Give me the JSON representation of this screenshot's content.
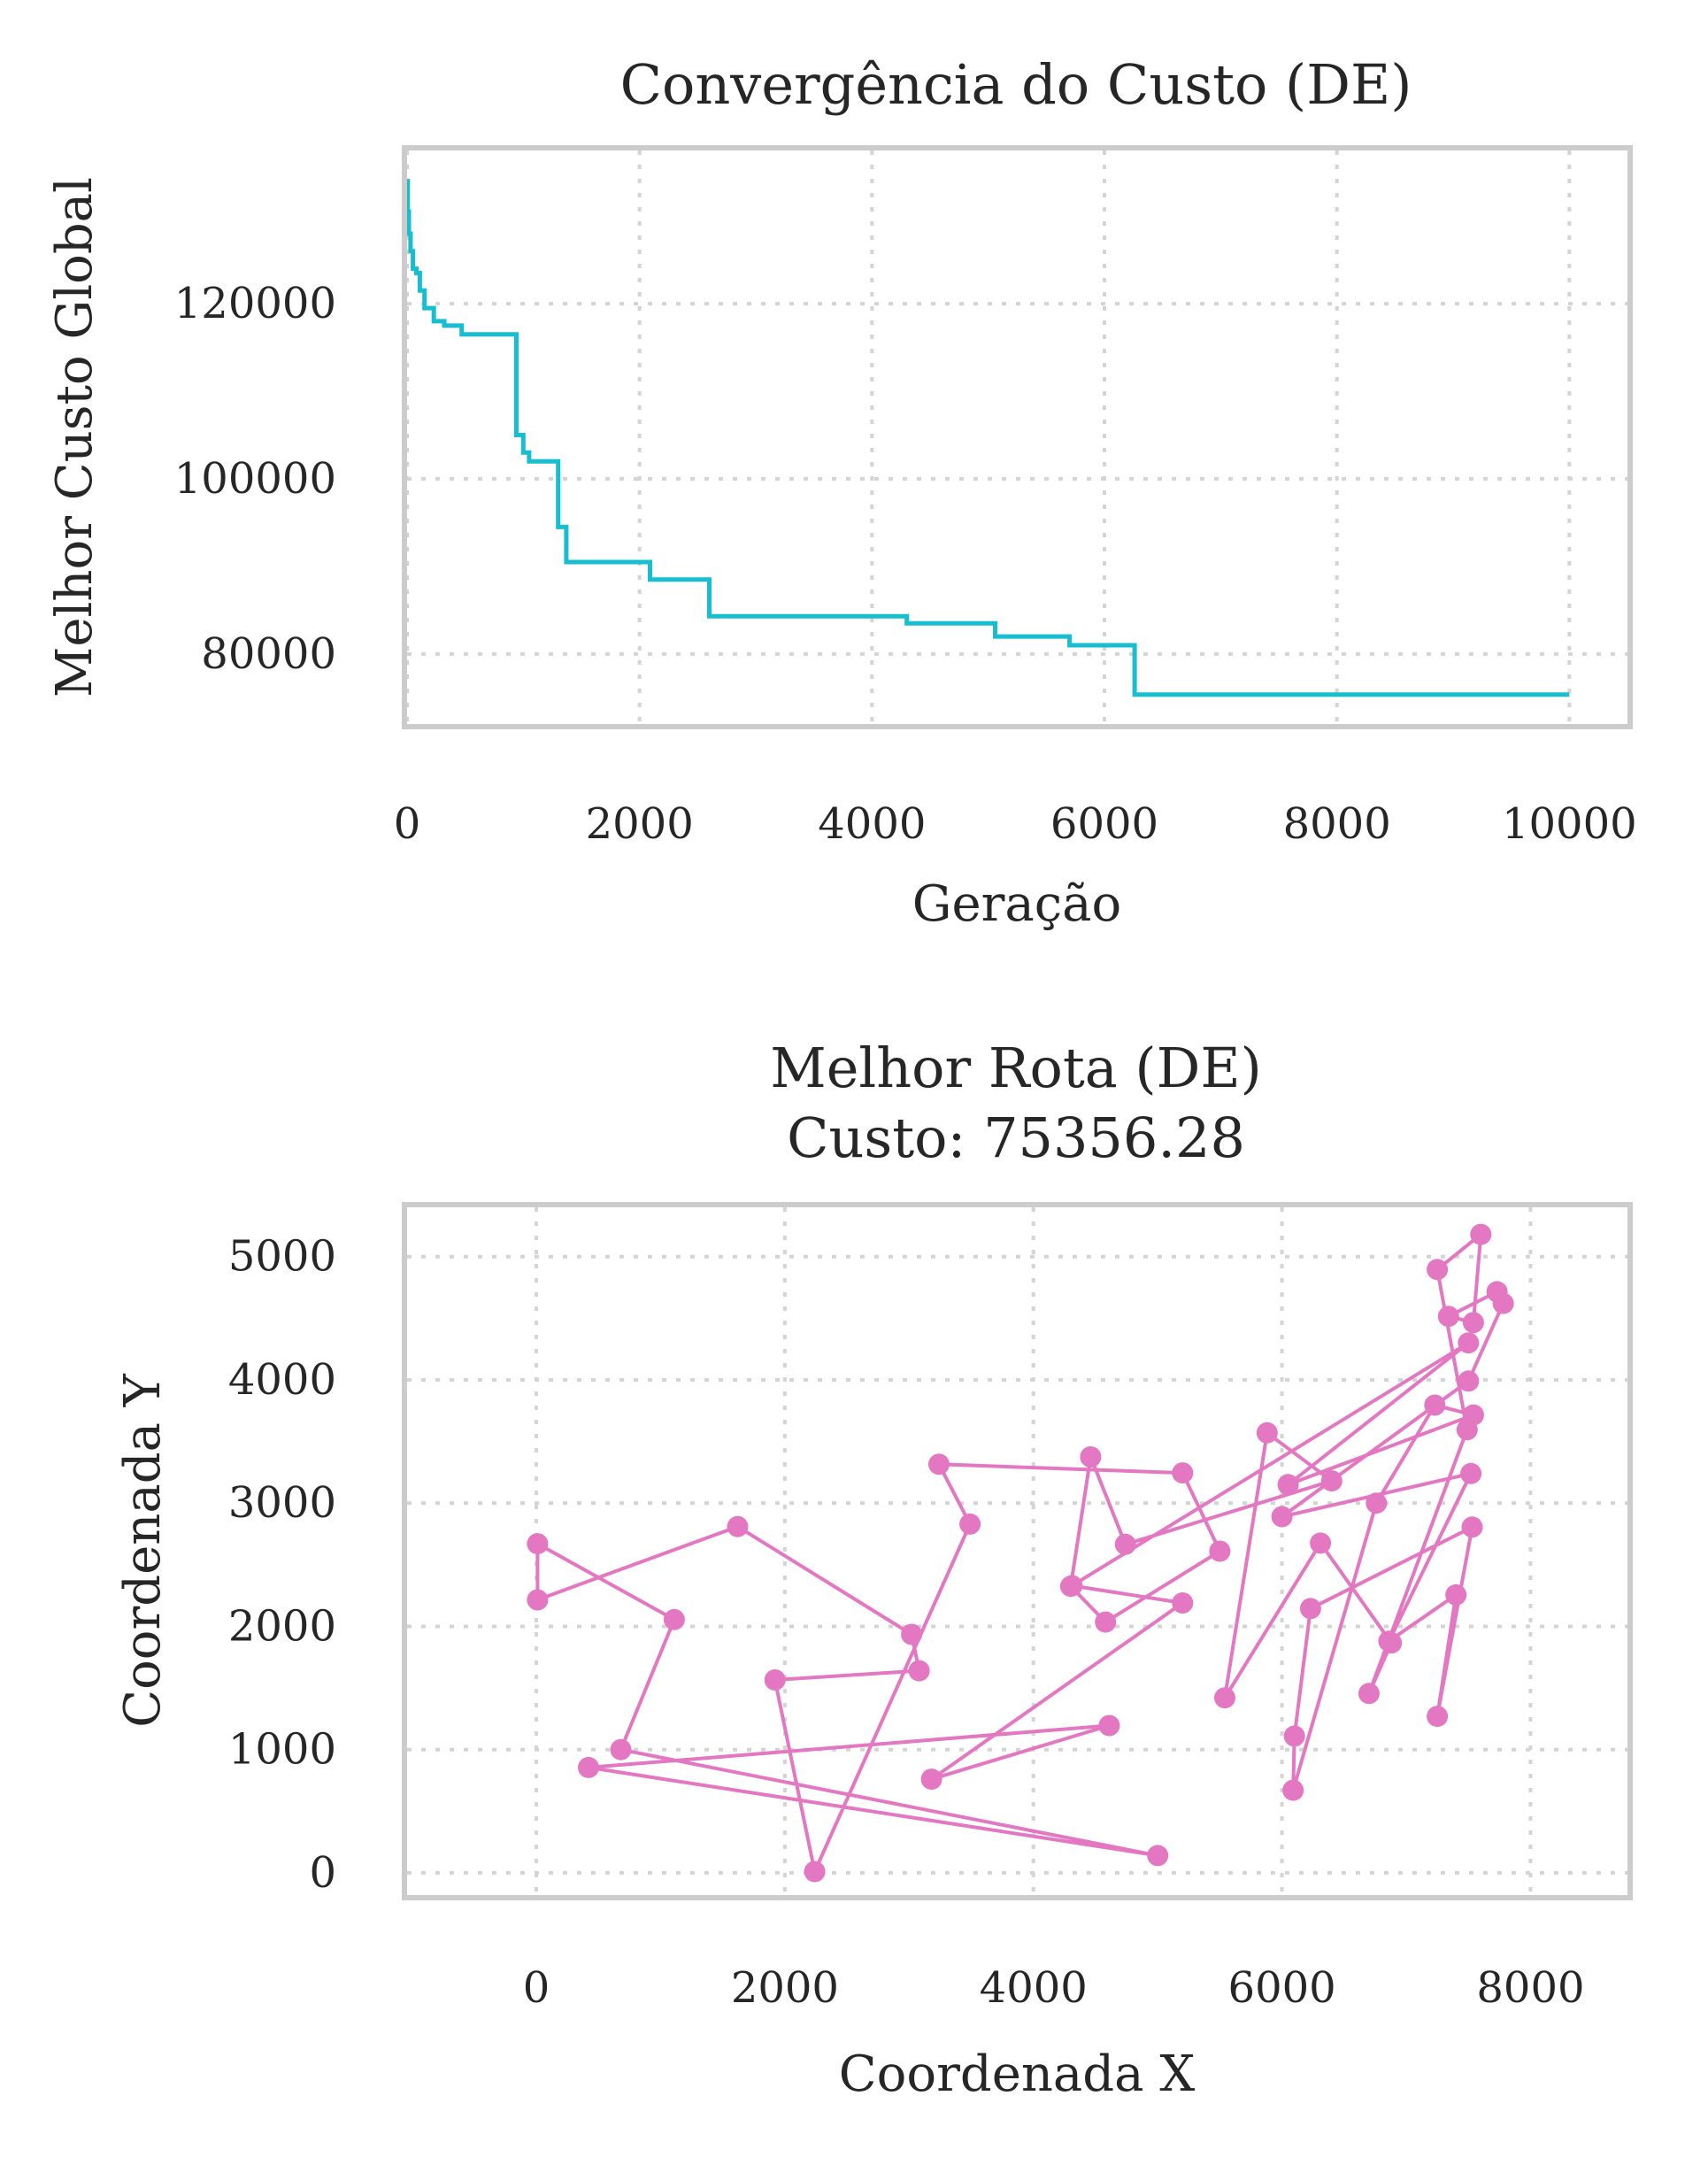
{
  "chart_data": [
    {
      "type": "line",
      "title": "Convergência do Custo (DE)",
      "xlabel": "Geração",
      "ylabel": "Melhor Custo Global",
      "xlim": [
        0,
        10500
      ],
      "ylim": [
        72000,
        137500
      ],
      "xticks": [
        0,
        2000,
        4000,
        6000,
        8000,
        10000
      ],
      "yticks": [
        80000,
        100000,
        120000
      ],
      "xtick_labels": [
        "0",
        "2000",
        "4000",
        "6000",
        "8000",
        "10000"
      ],
      "ytick_labels": [
        "80000",
        "100000",
        "120000"
      ],
      "grid": true,
      "color": "#17becf",
      "series": [
        {
          "step": true,
          "x": [
            0,
            5,
            15,
            30,
            50,
            80,
            110,
            150,
            230,
            320,
            470,
            940,
            1000,
            1050,
            1300,
            1370,
            2090,
            2600,
            4300,
            5060,
            5700,
            6260,
            10000
          ],
          "y": [
            134000,
            130500,
            128000,
            126000,
            124000,
            123500,
            121500,
            119500,
            118000,
            117500,
            116500,
            105000,
            103000,
            102000,
            94500,
            90500,
            88500,
            84300,
            83500,
            82000,
            81000,
            75356.28,
            75356.28
          ]
        }
      ]
    },
    {
      "type": "line",
      "title": "Melhor Rota (DE)",
      "subtitle": "Custo: 75356.28",
      "xlabel": "Coordenada X",
      "ylabel": "Coordenada Y",
      "xlim": [
        -1040,
        8780
      ],
      "ylim": [
        -180,
        5400
      ],
      "xticks": [
        0,
        2000,
        4000,
        6000,
        8000
      ],
      "yticks": [
        0,
        1000,
        2000,
        3000,
        4000,
        5000
      ],
      "xtick_labels": [
        "0",
        "2000",
        "4000",
        "6000",
        "8000"
      ],
      "ytick_labels": [
        "0",
        "1000",
        "2000",
        "3000",
        "4000",
        "5000"
      ],
      "grid": true,
      "color": "#e377c2",
      "markers": true,
      "points": [
        [
          10,
          2670
        ],
        [
          10,
          2215
        ],
        [
          1620,
          2810
        ],
        [
          3020,
          1935
        ],
        [
          3080,
          1640
        ],
        [
          1920,
          1565
        ],
        [
          2240,
          10
        ],
        [
          3490,
          2830
        ],
        [
          3240,
          3315
        ],
        [
          5200,
          3245
        ],
        [
          5500,
          2610
        ],
        [
          4580,
          2035
        ],
        [
          4300,
          2325
        ],
        [
          4460,
          3375
        ],
        [
          4740,
          2665
        ],
        [
          6400,
          3180
        ],
        [
          5880,
          3570
        ],
        [
          5540,
          1420
        ],
        [
          6310,
          2675
        ],
        [
          6880,
          1865
        ],
        [
          6700,
          1455
        ],
        [
          7490,
          3595
        ],
        [
          7250,
          4895
        ],
        [
          7600,
          5180
        ],
        [
          7540,
          4465
        ],
        [
          7340,
          4515
        ],
        [
          7730,
          4715
        ],
        [
          7780,
          4620
        ],
        [
          7500,
          3990
        ],
        [
          6000,
          2890
        ],
        [
          7520,
          3240
        ],
        [
          6860,
          1880
        ],
        [
          7400,
          2255
        ],
        [
          7250,
          1270
        ],
        [
          7530,
          2805
        ],
        [
          6230,
          2145
        ],
        [
          6100,
          1110
        ],
        [
          6090,
          670
        ],
        [
          6760,
          3000
        ],
        [
          7230,
          3795
        ],
        [
          7540,
          3715
        ],
        [
          6050,
          3150
        ],
        [
          7500,
          4300
        ],
        [
          4310,
          2330
        ],
        [
          5200,
          2190
        ],
        [
          3180,
          760
        ],
        [
          4610,
          1195
        ],
        [
          420,
          855
        ],
        [
          5000,
          140
        ],
        [
          680,
          1000
        ],
        [
          1110,
          2055
        ],
        [
          10,
          2670
        ]
      ]
    }
  ]
}
